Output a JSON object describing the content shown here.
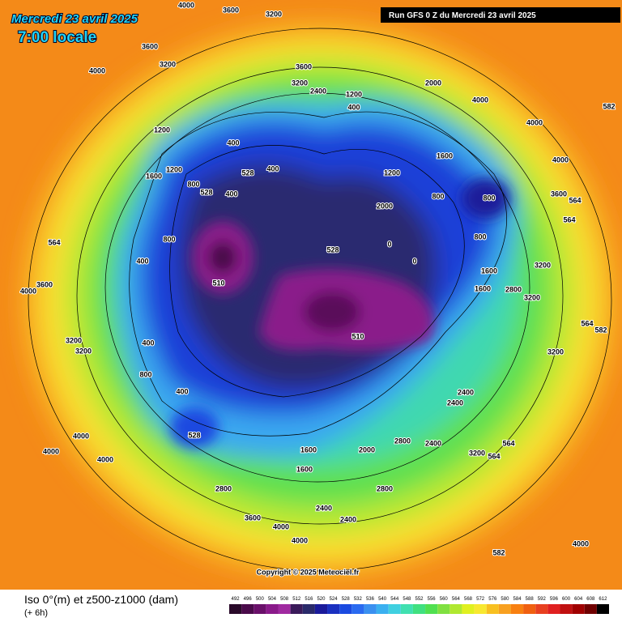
{
  "header": {
    "date": "Mercredi 23 avril 2025",
    "time": "7:00 locale",
    "run": "Run GFS 0 Z du Mercredi 23 avril 2025"
  },
  "map": {
    "contour_labels": [
      4000,
      3600,
      3200,
      3600,
      3200,
      4000,
      3600,
      3200,
      2400,
      1200,
      400,
      2000,
      4000,
      4000,
      4000,
      3600,
      564,
      3200,
      2800,
      3200,
      1600,
      1600,
      800,
      800,
      800,
      1600,
      2000,
      1200,
      400,
      1200,
      1600,
      1200,
      800,
      400,
      528,
      528,
      400,
      510,
      528,
      510,
      0,
      0,
      400,
      800,
      400,
      800,
      400,
      528,
      4000,
      4000,
      4000,
      2800,
      3600,
      4000,
      4000,
      2400,
      2400,
      2800,
      2400,
      2400,
      2400,
      2000,
      1600,
      1600,
      2800,
      3200,
      564,
      564,
      582,
      4000,
      582,
      564,
      582,
      564,
      3200,
      3600,
      4000,
      3200,
      3200,
      564
    ]
  },
  "footer": {
    "title": "Iso 0°(m) et z500-z1000 (dam)",
    "step": "(+ 6h)",
    "copyright": "Copyright © 2025 Meteociel.fr"
  },
  "legend": {
    "values": [
      492,
      496,
      500,
      504,
      508,
      512,
      516,
      520,
      524,
      528,
      532,
      536,
      540,
      544,
      548,
      552,
      556,
      560,
      564,
      568,
      572,
      576,
      580,
      584,
      588,
      592,
      596,
      600,
      604,
      608,
      612
    ],
    "colors": [
      "#2a0a2a",
      "#4a0a4a",
      "#6a106a",
      "#8a1a8a",
      "#a02aa0",
      "#3a1a5a",
      "#2a2a6a",
      "#1a1a9a",
      "#1a30c0",
      "#1a4ae0",
      "#2a6af0",
      "#3a90f0",
      "#3ab0f0",
      "#40d0e0",
      "#40e0b0",
      "#40e080",
      "#50e050",
      "#80e040",
      "#b0e830",
      "#e0f020",
      "#f8e830",
      "#f8c020",
      "#f8a020",
      "#f88010",
      "#f06010",
      "#e84020",
      "#e02020",
      "#c01010",
      "#a00000",
      "#700000",
      "#000000"
    ]
  }
}
